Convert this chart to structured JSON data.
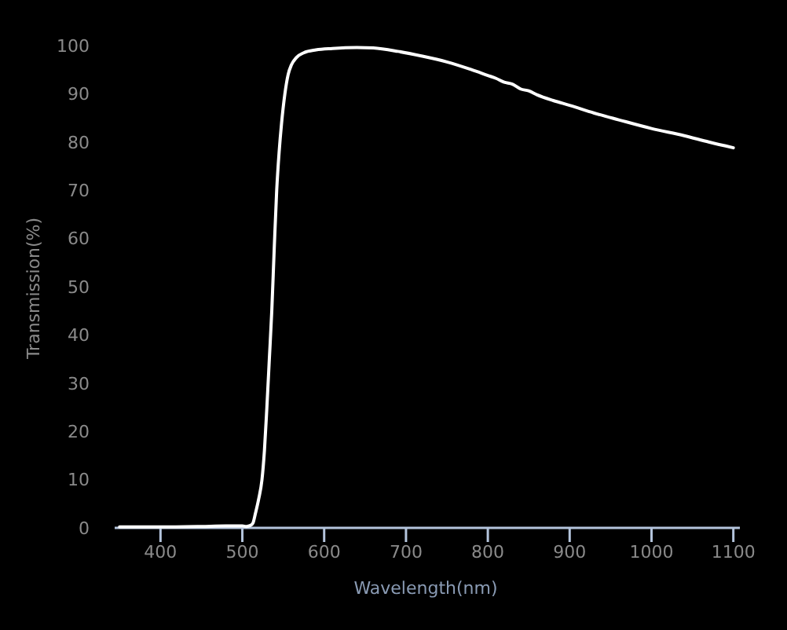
{
  "chart_data": {
    "type": "line",
    "xlabel": "Wavelength(nm)",
    "ylabel": "Transmission(%)",
    "xlim": [
      344,
      1108
    ],
    "ylim": [
      0,
      100
    ],
    "xticks": [
      400,
      500,
      600,
      700,
      800,
      900,
      1000,
      1100
    ],
    "yticks": [
      0,
      10,
      20,
      30,
      40,
      50,
      60,
      70,
      80,
      90,
      100
    ],
    "x": [
      350,
      400,
      450,
      480,
      500,
      505,
      510,
      513,
      516,
      520,
      524,
      527,
      530,
      533,
      536,
      539,
      542,
      545,
      548,
      552,
      556,
      560,
      566,
      575,
      590,
      610,
      640,
      660,
      690,
      720,
      750,
      780,
      800,
      810,
      820,
      830,
      840,
      850,
      860,
      880,
      900,
      930,
      960,
      1000,
      1040,
      1070,
      1100
    ],
    "series": [
      {
        "color": "#ffffff",
        "values": [
          0.2,
          0.2,
          0.3,
          0.4,
          0.4,
          0.3,
          0.5,
          1,
          3,
          6,
          10,
          16,
          25,
          35,
          45,
          58,
          70,
          78,
          84,
          90,
          94,
          96,
          97.5,
          98.5,
          99.1,
          99.4,
          99.6,
          99.5,
          98.8,
          97.8,
          96.6,
          95.0,
          93.8,
          93.2,
          92.4,
          92.0,
          91.0,
          90.6,
          89.8,
          88.6,
          87.6,
          86.0,
          84.6,
          82.8,
          81.3,
          80.0,
          78.8
        ]
      }
    ]
  }
}
